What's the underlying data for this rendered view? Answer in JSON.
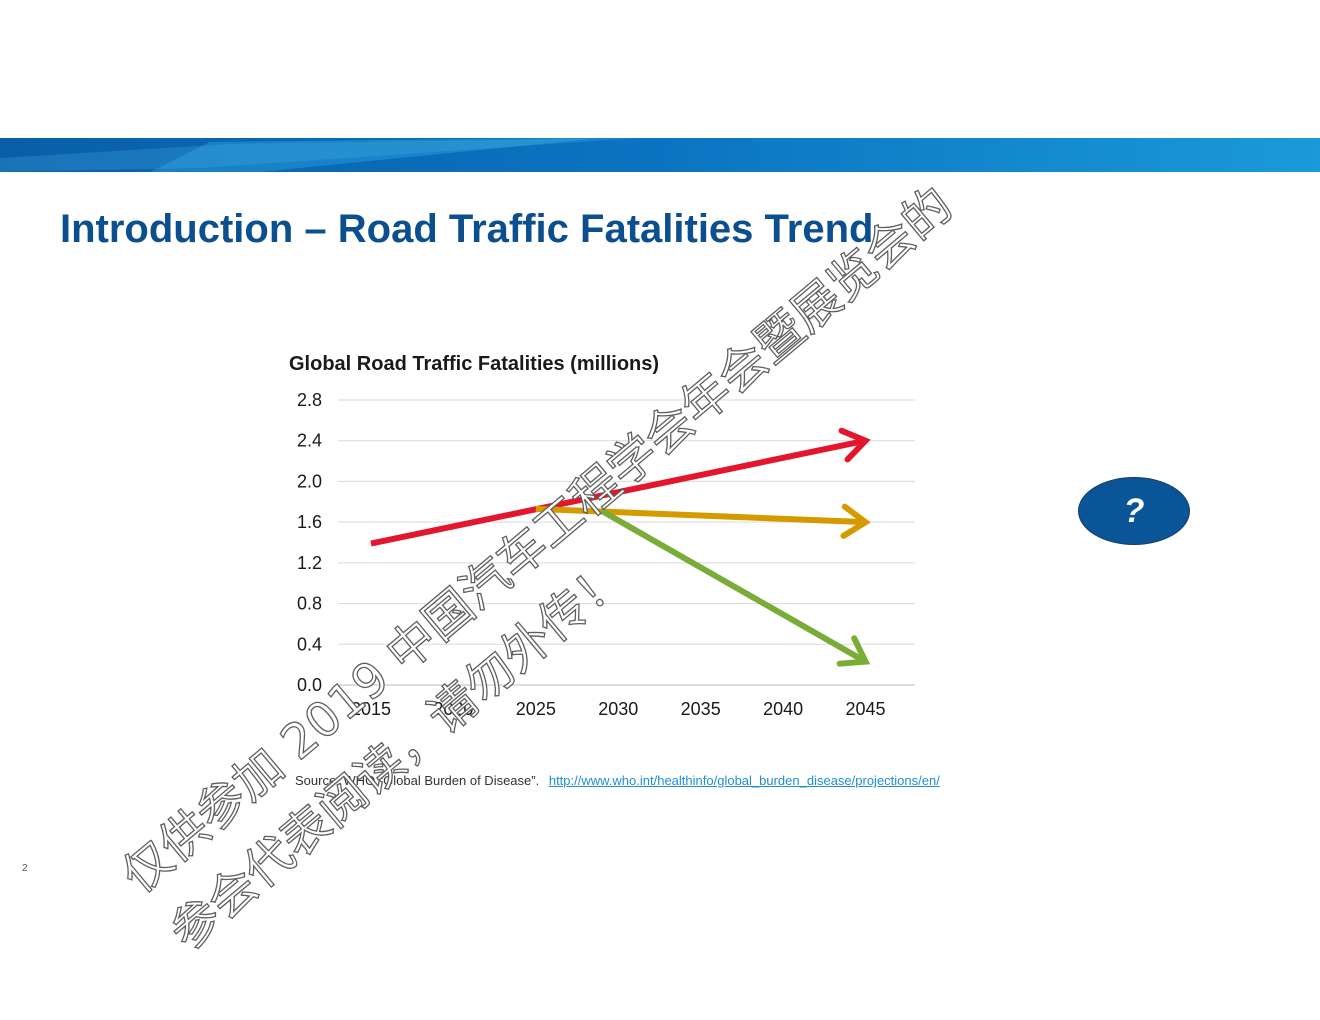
{
  "slide": {
    "title": "Introduction – Road Traffic Fatalities Trend",
    "page_number": "2",
    "question_mark": "?",
    "source_text": "Source: WHO “Global Burden of Disease”.",
    "source_link": "http://www.who.int/healthinfo/global_burden_disease/projections/en/"
  },
  "watermark": {
    "line1": "仅供参加 2019 中国汽车工程学会年会暨展览会的",
    "line2": "参会代表阅读，请勿外传！"
  },
  "colors": {
    "banner_dark": "#0a5ea8",
    "banner_light": "#1a9ad8",
    "title": "#0b4f8f",
    "badge": "#0a5598"
  },
  "chart_data": {
    "type": "line",
    "title": "Global Road Traffic Fatalities (millions)",
    "xlabel": "",
    "ylabel": "",
    "x_ticks": [
      "2015",
      "2020",
      "2025",
      "2030",
      "2035",
      "2040",
      "2045"
    ],
    "y_ticks": [
      "0.0",
      "0.4",
      "0.8",
      "1.2",
      "1.6",
      "2.0",
      "2.4",
      "2.8"
    ],
    "xlim": [
      2013,
      2048
    ],
    "ylim": [
      0,
      2.8
    ],
    "grid": true,
    "series": [
      {
        "color": "#e3162e",
        "points": [
          [
            2015,
            1.39
          ],
          [
            2045,
            2.4
          ]
        ]
      },
      {
        "color": "#d49a00",
        "points": [
          [
            2025,
            1.73
          ],
          [
            2045,
            1.6
          ]
        ]
      },
      {
        "color": "#7aac38",
        "points": [
          [
            2029,
            1.71
          ],
          [
            2045,
            0.23
          ]
        ]
      }
    ]
  }
}
